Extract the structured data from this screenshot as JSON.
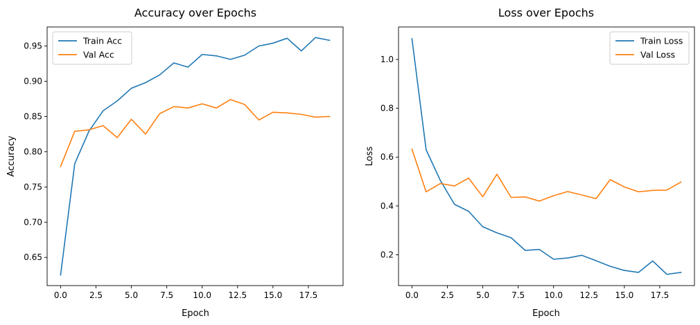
{
  "chart_data": [
    {
      "type": "line",
      "title": "Accuracy over Epochs",
      "xlabel": "Epoch",
      "ylabel": "Accuracy",
      "xlim": [
        -0.95,
        19.95
      ],
      "ylim": [
        0.61,
        0.977
      ],
      "xticks": [
        0.0,
        2.5,
        5.0,
        7.5,
        10.0,
        12.5,
        15.0,
        17.5
      ],
      "xtick_labels": [
        "0.0",
        "2.5",
        "5.0",
        "7.5",
        "10.0",
        "12.5",
        "15.0",
        "17.5"
      ],
      "yticks": [
        0.65,
        0.7,
        0.75,
        0.8,
        0.85,
        0.9,
        0.95
      ],
      "ytick_labels": [
        "0.65",
        "0.70",
        "0.75",
        "0.80",
        "0.85",
        "0.90",
        "0.95"
      ],
      "grid": false,
      "legend_position": "upper left",
      "x": [
        0,
        1,
        2,
        3,
        4,
        5,
        6,
        7,
        8,
        9,
        10,
        11,
        12,
        13,
        14,
        15,
        16,
        17,
        18,
        19
      ],
      "series": [
        {
          "name": "Train Acc",
          "color": "#1f77b4",
          "values": [
            0.625,
            0.783,
            0.829,
            0.858,
            0.872,
            0.89,
            0.898,
            0.909,
            0.926,
            0.92,
            0.938,
            0.936,
            0.931,
            0.937,
            0.95,
            0.954,
            0.961,
            0.943,
            0.962,
            0.958
          ]
        },
        {
          "name": "Val Acc",
          "color": "#ff7f0e",
          "values": [
            0.779,
            0.829,
            0.831,
            0.837,
            0.82,
            0.846,
            0.825,
            0.854,
            0.864,
            0.862,
            0.868,
            0.862,
            0.874,
            0.867,
            0.845,
            0.856,
            0.855,
            0.853,
            0.849,
            0.85
          ]
        }
      ]
    },
    {
      "type": "line",
      "title": "Loss over Epochs",
      "xlabel": "Epoch",
      "ylabel": "Loss",
      "xlim": [
        -0.95,
        19.95
      ],
      "ylim": [
        0.074,
        1.133
      ],
      "xticks": [
        0.0,
        2.5,
        5.0,
        7.5,
        10.0,
        12.5,
        15.0,
        17.5
      ],
      "xtick_labels": [
        "0.0",
        "2.5",
        "5.0",
        "7.5",
        "10.0",
        "12.5",
        "15.0",
        "17.5"
      ],
      "yticks": [
        0.2,
        0.4,
        0.6,
        0.8,
        1.0
      ],
      "ytick_labels": [
        "0.2",
        "0.4",
        "0.6",
        "0.8",
        "1.0"
      ],
      "grid": false,
      "legend_position": "upper right",
      "x": [
        0,
        1,
        2,
        3,
        4,
        5,
        6,
        7,
        8,
        9,
        10,
        11,
        12,
        13,
        14,
        15,
        16,
        17,
        18,
        19
      ],
      "series": [
        {
          "name": "Train Loss",
          "color": "#1f77b4",
          "values": [
            1.085,
            0.63,
            0.505,
            0.407,
            0.378,
            0.315,
            0.29,
            0.27,
            0.218,
            0.222,
            0.182,
            0.187,
            0.198,
            0.176,
            0.153,
            0.136,
            0.128,
            0.175,
            0.12,
            0.128
          ]
        },
        {
          "name": "Val Loss",
          "color": "#ff7f0e",
          "values": [
            0.633,
            0.458,
            0.492,
            0.482,
            0.514,
            0.438,
            0.53,
            0.435,
            0.437,
            0.42,
            0.442,
            0.459,
            0.445,
            0.43,
            0.508,
            0.478,
            0.458,
            0.464,
            0.465,
            0.498
          ]
        }
      ]
    }
  ]
}
